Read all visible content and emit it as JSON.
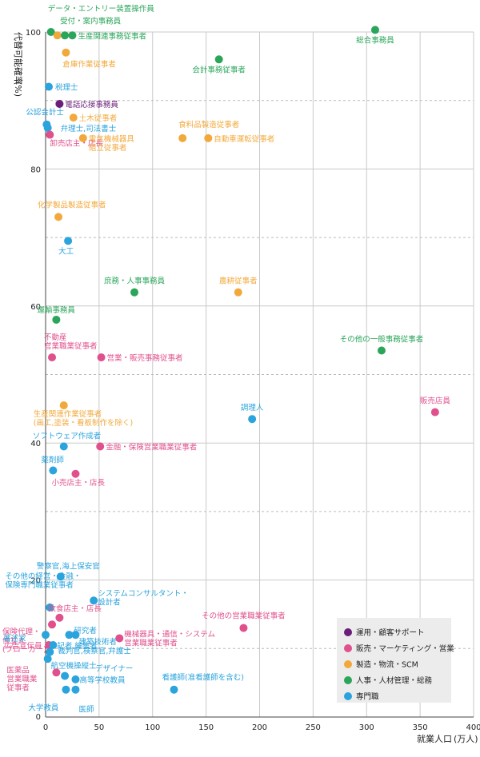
{
  "chart_data": {
    "type": "scatter",
    "ylabel": "代替可能確率",
    "ylabel_unit": "(%)",
    "xlabel": "就業人口",
    "xlabel_unit": "(万人)",
    "xlim": [
      0,
      400
    ],
    "ylim": [
      0,
      100
    ],
    "x_ticks": [
      "0",
      "50",
      "100",
      "150",
      "200",
      "250",
      "300",
      "350",
      "400"
    ],
    "y_ticks": [
      "20",
      "40",
      "60",
      "80",
      "100"
    ],
    "grid": true,
    "legend_position": "bottom-right",
    "categories": [
      {
        "id": "ops",
        "name": "運用・顧客サポート",
        "color": "#6b1d7a"
      },
      {
        "id": "sales",
        "name": "販売・マーケティング・営業",
        "color": "#e0508c"
      },
      {
        "id": "mfg",
        "name": "製造・物流・SCM",
        "color": "#f2a93b"
      },
      {
        "id": "hr",
        "name": "人事・人材管理・総務",
        "color": "#2aa55a"
      },
      {
        "id": "pro",
        "name": "専門職",
        "color": "#2ba3dc"
      }
    ],
    "points": [
      {
        "label": "データ・エントリー装置操作員",
        "x": 5,
        "y": 100,
        "cat": "hr"
      },
      {
        "label": "",
        "x": 11,
        "y": 99.5,
        "cat": "mfg"
      },
      {
        "label": "受付・案内事務員",
        "x": 18,
        "y": 99.5,
        "cat": "hr"
      },
      {
        "label": "生産関連事務従事者",
        "x": 25,
        "y": 99.5,
        "cat": "hr"
      },
      {
        "label": "倉庫作業従事者",
        "x": 19,
        "y": 97,
        "cat": "mfg"
      },
      {
        "label": "総合事務員",
        "x": 308,
        "y": 100.3,
        "cat": "hr"
      },
      {
        "label": "会計事務従事者",
        "x": 162,
        "y": 96,
        "cat": "hr"
      },
      {
        "label": "税理士",
        "x": 3,
        "y": 92,
        "cat": "pro"
      },
      {
        "label": "電話応接事務員",
        "x": 13,
        "y": 89.5,
        "cat": "ops"
      },
      {
        "label": "土木従事者",
        "x": 26,
        "y": 87.5,
        "cat": "mfg"
      },
      {
        "label": "公認会計士",
        "x": 1,
        "y": 86.5,
        "cat": "pro"
      },
      {
        "label": "弁理士,司法書士",
        "x": 2,
        "y": 86,
        "cat": "pro"
      },
      {
        "label": "卸売店主・店長",
        "x": 4,
        "y": 85,
        "cat": "sales"
      },
      {
        "label": "食料品製造従事者",
        "x": 128,
        "y": 84.5,
        "cat": "mfg"
      },
      {
        "label": "自動車運転従事者",
        "x": 152,
        "y": 84.5,
        "cat": "mfg"
      },
      {
        "label": "電気機械器具組立従事者",
        "x": 35,
        "y": 84.5,
        "cat": "mfg"
      },
      {
        "label": "化学製品製造従事者",
        "x": 12,
        "y": 73,
        "cat": "mfg"
      },
      {
        "label": "大工",
        "x": 21,
        "y": 69.5,
        "cat": "pro"
      },
      {
        "label": "庶務・人事事務員",
        "x": 83,
        "y": 62,
        "cat": "hr"
      },
      {
        "label": "農耕従事者",
        "x": 180,
        "y": 62,
        "cat": "mfg"
      },
      {
        "label": "運輸事務員",
        "x": 10,
        "y": 58,
        "cat": "hr"
      },
      {
        "label": "不動産営業職業従事者",
        "x": 6,
        "y": 52.5,
        "cat": "sales"
      },
      {
        "label": "営業・販売事務従事者",
        "x": 52,
        "y": 52.5,
        "cat": "sales"
      },
      {
        "label": "その他の一般事務従事者",
        "x": 314,
        "y": 53.5,
        "cat": "hr"
      },
      {
        "label": "生産関連作業従事者(画工,塗装・看板制作を除く)",
        "x": 17,
        "y": 45.5,
        "cat": "mfg"
      },
      {
        "label": "販売店員",
        "x": 364,
        "y": 44.5,
        "cat": "sales"
      },
      {
        "label": "調理人",
        "x": 193,
        "y": 43.5,
        "cat": "pro"
      },
      {
        "label": "ソフトウェア作成者",
        "x": 17,
        "y": 39.5,
        "cat": "pro"
      },
      {
        "label": "金融・保険営業職業従事者",
        "x": 51,
        "y": 39.5,
        "cat": "sales"
      },
      {
        "label": "薬剤師",
        "x": 7,
        "y": 36,
        "cat": "pro"
      },
      {
        "label": "小売店主・店長",
        "x": 28,
        "y": 35.5,
        "cat": "sales"
      },
      {
        "label": "警察官,海上保安官",
        "x": 14,
        "y": 20.5,
        "cat": "pro"
      },
      {
        "label": "その他の経営・金融・保険専門職業従事者",
        "x": 4,
        "y": 16,
        "cat": "pro"
      },
      {
        "label": "システムコンサルタント・設計者",
        "x": 45,
        "y": 17,
        "cat": "pro"
      },
      {
        "label": "保険代理・仲立人(ブローカー)",
        "x": 6,
        "y": 13.5,
        "cat": "sales"
      },
      {
        "label": "飲食店主・店長",
        "x": 13,
        "y": 14.5,
        "cat": "sales"
      },
      {
        "label": "研究者",
        "x": 22,
        "y": 12,
        "cat": "pro"
      },
      {
        "label": "著述家",
        "x": 0,
        "y": 12,
        "cat": "pro"
      },
      {
        "label": "建築技術者",
        "x": 28,
        "y": 12,
        "cat": "pro"
      },
      {
        "label": "機械器具・通信・システム営業職業従事者",
        "x": 69,
        "y": 11.5,
        "cat": "sales"
      },
      {
        "label": "その他の営業職業従事者",
        "x": 185,
        "y": 13,
        "cat": "sales"
      },
      {
        "label": "広告宣伝員",
        "x": 3,
        "y": 10.5,
        "cat": "sales"
      },
      {
        "label": "記者,編集者",
        "x": 7,
        "y": 10.5,
        "cat": "pro"
      },
      {
        "label": "裁判官,検察官,弁護士",
        "x": 4,
        "y": 9.5,
        "cat": "pro"
      },
      {
        "label": "航空機操縦士",
        "x": 2,
        "y": 8.5,
        "cat": "pro"
      },
      {
        "label": "医薬品営業職業従事者",
        "x": 10,
        "y": 6.5,
        "cat": "sales"
      },
      {
        "label": "デザイナー",
        "x": 18,
        "y": 6,
        "cat": "pro"
      },
      {
        "label": "高等学校教員",
        "x": 28,
        "y": 5.5,
        "cat": "pro"
      },
      {
        "label": "大学教員",
        "x": 19,
        "y": 4,
        "cat": "pro"
      },
      {
        "label": "医師",
        "x": 28,
        "y": 4,
        "cat": "pro"
      },
      {
        "label": "看護師(准看護師を含む)",
        "x": 120,
        "y": 4,
        "cat": "pro"
      }
    ]
  }
}
